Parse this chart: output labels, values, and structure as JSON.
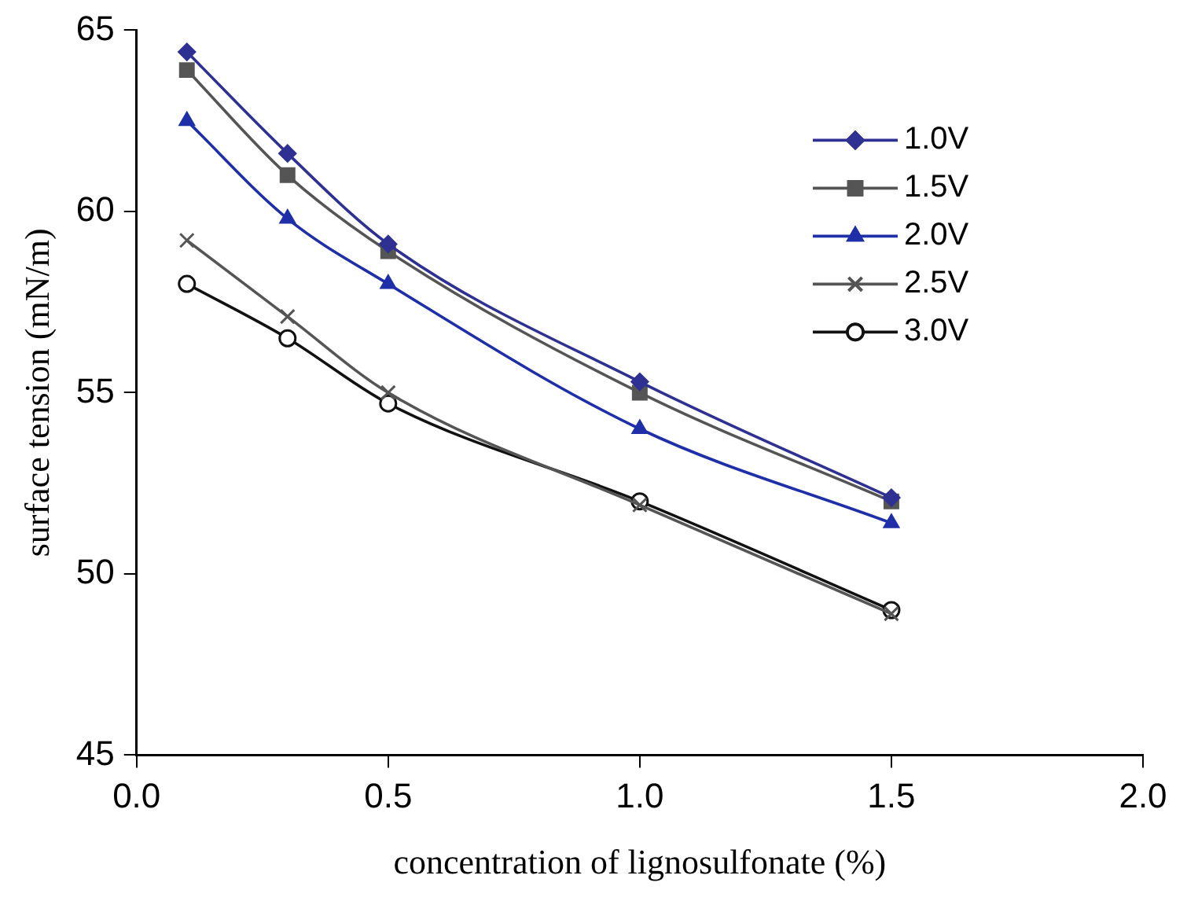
{
  "chart_data": {
    "type": "line",
    "xlabel": "concentration of lignosulfonate (%)",
    "ylabel": "surface tension (mN/m)",
    "x": [
      0.1,
      0.3,
      0.5,
      1.0,
      1.5
    ],
    "xlim": [
      0,
      2
    ],
    "xticks": [
      {
        "value": 0,
        "label": "0.0"
      },
      {
        "value": 0.5,
        "label": "0.5"
      },
      {
        "value": 1,
        "label": "1.0"
      },
      {
        "value": 1.5,
        "label": "1.5"
      },
      {
        "value": 2,
        "label": "2.0"
      }
    ],
    "ylim": [
      45,
      65
    ],
    "yticks": [
      45,
      50,
      55,
      60,
      65
    ],
    "grid": false,
    "legend": "top right",
    "series": [
      {
        "name": "1.0V",
        "color": "#2e3192",
        "marker": "diamond",
        "values": [
          64.4,
          61.6,
          59.1,
          55.3,
          52.1
        ]
      },
      {
        "name": "1.5V",
        "color": "#555555",
        "marker": "square",
        "values": [
          63.9,
          61.0,
          58.9,
          55.0,
          52.0
        ]
      },
      {
        "name": "2.0V",
        "color": "#1f2fa8",
        "marker": "triangle",
        "values": [
          62.5,
          59.8,
          58.0,
          54.0,
          51.4
        ]
      },
      {
        "name": "2.5V",
        "color": "#555555",
        "marker": "cross",
        "values": [
          59.2,
          57.1,
          55.0,
          51.9,
          48.9
        ]
      },
      {
        "name": "3.0V",
        "color": "#111111",
        "marker": "circle",
        "values": [
          58.0,
          56.5,
          54.7,
          52.0,
          49.0
        ]
      }
    ]
  }
}
